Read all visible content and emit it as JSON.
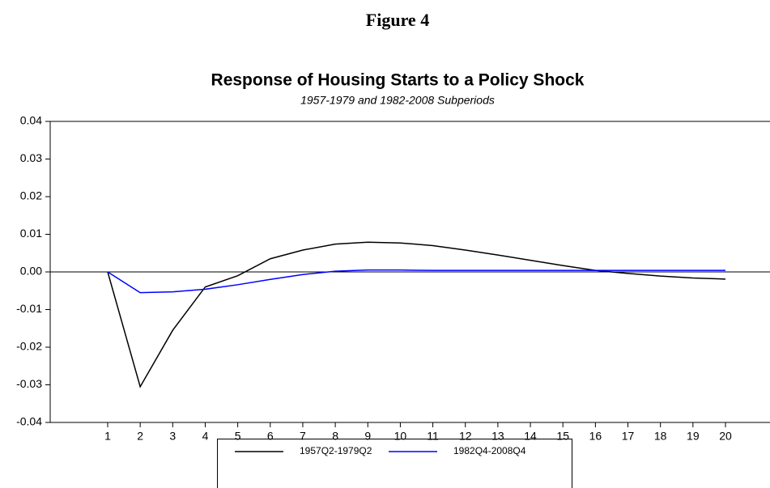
{
  "figure_label": "Figure 4",
  "chart_data": {
    "type": "line",
    "title": "Response of Housing Starts to a Policy Shock",
    "subtitle": "1957-1979 and 1982-2008 Subperiods",
    "categories": [
      "1",
      "2",
      "3",
      "4",
      "5",
      "6",
      "7",
      "8",
      "9",
      "10",
      "11",
      "12",
      "13",
      "14",
      "15",
      "16",
      "17",
      "18",
      "19",
      "20"
    ],
    "series": [
      {
        "name": "1957Q2-1979Q2",
        "color": "#000000",
        "values": [
          0,
          -0.0305,
          -0.0155,
          -0.004,
          -0.001,
          0.0035,
          0.0058,
          0.0074,
          0.0079,
          0.0077,
          0.007,
          0.0058,
          0.0045,
          0.0031,
          0.0017,
          0.0004,
          -0.0004,
          -0.0011,
          -0.0016,
          -0.0019
        ]
      },
      {
        "name": "1982Q4-2008Q4",
        "color": "#0000ff",
        "values": [
          0,
          -0.0055,
          -0.0053,
          -0.0046,
          -0.0034,
          -0.002,
          -0.0007,
          0.0002,
          0.0005,
          0.0005,
          0.0004,
          0.0004,
          0.0004,
          0.0004,
          0.0004,
          0.0004,
          0.0004,
          0.0004,
          0.0004,
          0.0004
        ]
      }
    ],
    "ylim": [
      -0.04,
      0.04
    ],
    "yticks": [
      0.04,
      0.03,
      0.02,
      0.01,
      {
        "value": 0,
        "label": "0.00"
      },
      -0.01,
      -0.02,
      -0.03,
      -0.04
    ],
    "legend": "bottom"
  }
}
